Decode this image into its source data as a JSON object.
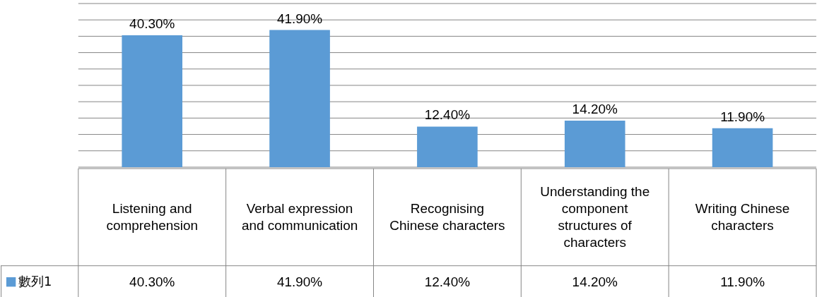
{
  "chart_data": {
    "type": "bar",
    "categories": [
      "Listening and comprehension",
      "Verbal expression and communication",
      "Recognising Chinese characters",
      "Understanding the component structures of characters",
      "Writing Chinese characters"
    ],
    "series": [
      {
        "name": "數列1",
        "color": "#5b9bd5",
        "values": [
          40.3,
          41.9,
          12.4,
          14.2,
          11.9
        ],
        "value_labels": [
          "40.30%",
          "41.90%",
          "12.40%",
          "14.20%",
          "11.90%"
        ]
      }
    ],
    "ylim": [
      0,
      51
    ],
    "yticks": [
      {
        "value": 0,
        "label": null
      },
      {
        "value": 5,
        "label": null
      },
      {
        "value": 10,
        "label": null
      },
      {
        "value": 15,
        "label": null
      },
      {
        "value": 20,
        "label": null
      },
      {
        "value": 25,
        "label": null
      },
      {
        "value": 30,
        "label": null
      },
      {
        "value": 35,
        "label": null
      },
      {
        "value": 40,
        "label": null
      },
      {
        "value": 45,
        "label": null
      },
      {
        "value": 50,
        "label": null
      }
    ],
    "grid": "y",
    "tick_labels": "x"
  }
}
